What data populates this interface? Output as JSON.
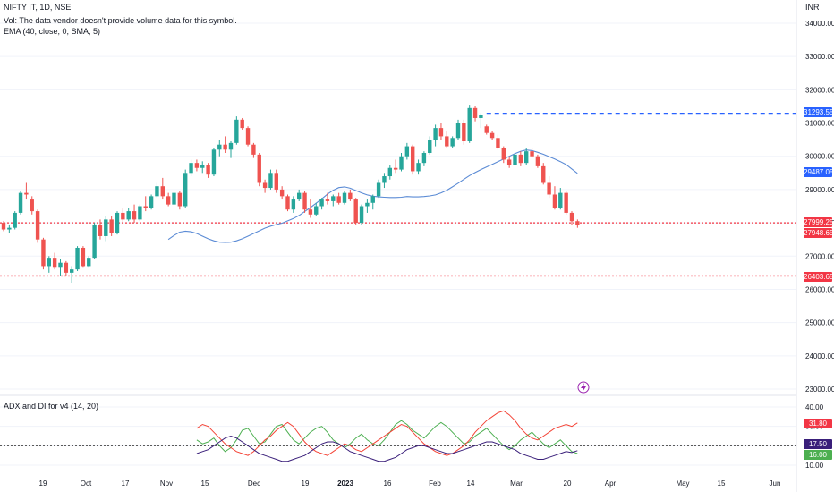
{
  "header": {
    "symbol_line": "NIFTY IT, 1D, NSE",
    "vol_line": "Vol: The data vendor doesn't provide volume data for this symbol.",
    "ema_line": "EMA (40, close, 0, SMA, 5)",
    "currency": "INR"
  },
  "indicator": {
    "title": "ADX and DI for v4 (14, 20)"
  },
  "colors": {
    "up": "#26a69a",
    "down": "#ef5350",
    "ma": "#5b8bd5",
    "blue_level": "#2962ff",
    "red_level": "#f23645",
    "adx": "#3a1f7a",
    "di_plus": "#4caf50",
    "di_minus": "#f44336",
    "threshold": "#444444",
    "flash": "#9c27b0"
  },
  "price_badges": [
    {
      "label": "31293.55",
      "color": "#2962ff"
    },
    {
      "label": "29487.05",
      "color": "#2962ff"
    },
    {
      "label": "27999.25",
      "color": "#f23645"
    },
    {
      "label": "27948.65",
      "color": "#f23645"
    },
    {
      "label": "26403.65",
      "color": "#f23645"
    }
  ],
  "indicator_badges": [
    {
      "label": "31.80",
      "color": "#f23645"
    },
    {
      "label": "17.50",
      "color": "#3a1f7a"
    },
    {
      "label": "16.00",
      "color": "#4caf50"
    }
  ],
  "chart_data": {
    "type": "candlestick",
    "price_axis": {
      "ylim": [
        22900,
        34500
      ],
      "ticks": [
        "34000.00",
        "33000.00",
        "32000.00",
        "31000.00",
        "30000.00",
        "29000.00",
        "28000.00",
        "27000.00",
        "26000.00",
        "25000.00",
        "24000.00",
        "23000.00"
      ]
    },
    "x_axis_labels": [
      "19",
      "Oct",
      "17",
      "Nov",
      "15",
      "Dec",
      "19",
      "2023",
      "16",
      "Feb",
      "14",
      "Mar",
      "20",
      "Apr",
      "May",
      "15",
      "Jun"
    ],
    "levels": [
      {
        "value": 31293.55,
        "style": "dashed",
        "color": "#2962ff"
      },
      {
        "value": 27999.25,
        "style": "dotted",
        "color": "#f23645"
      },
      {
        "value": 26403.65,
        "style": "dotted",
        "color": "#f23645"
      }
    ],
    "candles": [
      [
        28000,
        28050,
        27750,
        27800
      ],
      [
        27800,
        27950,
        27700,
        27850
      ],
      [
        27850,
        28350,
        27800,
        28300
      ],
      [
        28300,
        28950,
        28250,
        28900
      ],
      [
        28900,
        29200,
        28700,
        28850
      ],
      [
        28700,
        28800,
        28250,
        28350
      ],
      [
        28350,
        28400,
        27400,
        27500
      ],
      [
        27500,
        27550,
        26600,
        26700
      ],
      [
        26700,
        27000,
        26500,
        26950
      ],
      [
        26950,
        27100,
        26600,
        26650
      ],
      [
        26650,
        26900,
        26400,
        26800
      ],
      [
        26800,
        26850,
        26400,
        26500
      ],
      [
        26500,
        26700,
        26200,
        26600
      ],
      [
        26600,
        27300,
        26550,
        27250
      ],
      [
        27250,
        27300,
        26650,
        26700
      ],
      [
        26700,
        27000,
        26650,
        26950
      ],
      [
        26950,
        28000,
        26900,
        27950
      ],
      [
        27950,
        28100,
        27500,
        27600
      ],
      [
        27600,
        28200,
        27450,
        28100
      ],
      [
        28100,
        28200,
        27600,
        27700
      ],
      [
        27700,
        28350,
        27650,
        28300
      ],
      [
        28300,
        28450,
        28000,
        28100
      ],
      [
        28100,
        28450,
        28050,
        28350
      ],
      [
        28350,
        28550,
        28000,
        28100
      ],
      [
        28100,
        28550,
        28050,
        28500
      ],
      [
        28500,
        28800,
        28350,
        28450
      ],
      [
        28450,
        28850,
        28400,
        28800
      ],
      [
        28800,
        29200,
        28750,
        29100
      ],
      [
        29100,
        29350,
        28700,
        28800
      ],
      [
        28800,
        28900,
        28500,
        28550
      ],
      [
        28550,
        29000,
        28500,
        28900
      ],
      [
        28900,
        28950,
        28400,
        28500
      ],
      [
        28500,
        29600,
        28450,
        29500
      ],
      [
        29500,
        29900,
        29400,
        29800
      ],
      [
        29800,
        29900,
        29550,
        29650
      ],
      [
        29650,
        29850,
        29500,
        29750
      ],
      [
        29750,
        29800,
        29350,
        29450
      ],
      [
        29450,
        30250,
        29400,
        30200
      ],
      [
        30200,
        30500,
        30000,
        30350
      ],
      [
        30350,
        30600,
        30100,
        30200
      ],
      [
        30200,
        30450,
        29950,
        30400
      ],
      [
        30400,
        31200,
        30350,
        31100
      ],
      [
        31100,
        31150,
        30800,
        30850
      ],
      [
        30850,
        30900,
        30300,
        30350
      ],
      [
        30350,
        30400,
        29950,
        30050
      ],
      [
        30050,
        30100,
        29100,
        29200
      ],
      [
        29200,
        29300,
        28900,
        29050
      ],
      [
        29050,
        29600,
        29000,
        29500
      ],
      [
        29500,
        29600,
        28900,
        29000
      ],
      [
        29000,
        29100,
        28700,
        28800
      ],
      [
        28800,
        28850,
        28350,
        28400
      ],
      [
        28400,
        28800,
        28300,
        28700
      ],
      [
        28700,
        29000,
        28650,
        28900
      ],
      [
        28900,
        28950,
        28300,
        28400
      ],
      [
        28400,
        28700,
        28150,
        28250
      ],
      [
        28250,
        28600,
        28200,
        28500
      ],
      [
        28500,
        28750,
        28400,
        28700
      ],
      [
        28700,
        28900,
        28550,
        28650
      ],
      [
        28650,
        28850,
        28500,
        28800
      ],
      [
        28800,
        28900,
        28550,
        28600
      ],
      [
        28600,
        28950,
        28550,
        28900
      ],
      [
        28900,
        29000,
        28650,
        28700
      ],
      [
        28700,
        28750,
        27950,
        28000
      ],
      [
        28000,
        28550,
        27950,
        28500
      ],
      [
        28500,
        28700,
        28300,
        28600
      ],
      [
        28600,
        28850,
        28400,
        28800
      ],
      [
        28800,
        29300,
        28750,
        29200
      ],
      [
        29200,
        29500,
        29050,
        29400
      ],
      [
        29400,
        29750,
        29300,
        29650
      ],
      [
        29650,
        29900,
        29500,
        29600
      ],
      [
        29600,
        30100,
        29550,
        30000
      ],
      [
        30000,
        30400,
        29900,
        30300
      ],
      [
        30300,
        30350,
        29450,
        29550
      ],
      [
        29550,
        29900,
        29450,
        29800
      ],
      [
        29800,
        30150,
        29700,
        30100
      ],
      [
        30100,
        30600,
        30050,
        30500
      ],
      [
        30500,
        30950,
        30300,
        30850
      ],
      [
        30850,
        31000,
        30500,
        30600
      ],
      [
        30600,
        30750,
        30250,
        30300
      ],
      [
        30300,
        30600,
        30250,
        30550
      ],
      [
        30550,
        31100,
        30500,
        31000
      ],
      [
        31000,
        31100,
        30350,
        30450
      ],
      [
        30450,
        31550,
        30400,
        31450
      ],
      [
        31450,
        31500,
        31050,
        31150
      ],
      [
        31150,
        31300,
        30850,
        31250
      ],
      [
        30900,
        30950,
        30650,
        30700
      ],
      [
        30700,
        30750,
        30500,
        30550
      ],
      [
        30550,
        30650,
        30200,
        30250
      ],
      [
        30250,
        30300,
        29800,
        29900
      ],
      [
        29900,
        30000,
        29650,
        29750
      ],
      [
        29750,
        30100,
        29700,
        30050
      ],
      [
        30050,
        30150,
        29700,
        29800
      ],
      [
        29800,
        30250,
        29750,
        30150
      ],
      [
        30150,
        30250,
        29950,
        30000
      ],
      [
        30000,
        30050,
        29650,
        29700
      ],
      [
        29700,
        29800,
        29150,
        29200
      ],
      [
        29200,
        29400,
        28750,
        28850
      ],
      [
        28850,
        29100,
        28400,
        28450
      ],
      [
        28450,
        29050,
        28400,
        28900
      ],
      [
        28900,
        28950,
        28250,
        28300
      ],
      [
        28300,
        28350,
        27950,
        28050
      ],
      [
        28050,
        28100,
        27850,
        27948.65
      ]
    ],
    "ema_40": [
      27500,
      27620,
      27720,
      27750,
      27730,
      27680,
      27600,
      27520,
      27460,
      27420,
      27410,
      27420,
      27460,
      27520,
      27600,
      27680,
      27760,
      27840,
      27900,
      27950,
      27990,
      28060,
      28130,
      28220,
      28340,
      28460,
      28590,
      28720,
      28860,
      28980,
      29060,
      29080,
      29040,
      28970,
      28900,
      28840,
      28800,
      28780,
      28770,
      28760,
      28760,
      28770,
      28790,
      28780,
      28780,
      28790,
      28810,
      28840,
      28900,
      28980,
      29080,
      29190,
      29310,
      29420,
      29510,
      29600,
      29680,
      29760,
      29840,
      29920,
      30000,
      30080,
      30150,
      30190,
      30170,
      30120,
      30060,
      29990,
      29920,
      29840,
      29750,
      29620,
      29487.05
    ],
    "indicator": {
      "ylim": [
        8,
        42
      ],
      "ticks": [
        "40.00",
        "30.00",
        "20.00",
        "10.00"
      ],
      "threshold": 20,
      "adx": [
        16,
        17,
        18,
        20,
        22,
        24,
        25,
        24,
        22,
        20,
        18,
        16,
        15,
        14,
        13,
        12,
        12,
        13,
        14,
        15,
        17,
        19,
        21,
        22,
        22,
        21,
        19,
        17,
        16,
        15,
        14,
        13,
        12,
        12,
        13,
        14,
        16,
        18,
        19,
        20,
        20,
        19,
        18,
        17,
        16,
        16,
        17,
        18,
        19,
        20,
        21,
        22,
        22,
        21,
        20,
        19,
        18,
        16,
        15,
        14,
        13,
        13,
        14,
        15,
        16,
        17,
        16.5,
        17.5
      ],
      "di_plus": [
        23,
        21,
        22,
        24,
        20,
        17,
        19,
        23,
        28,
        29,
        25,
        21,
        22,
        26,
        30,
        31,
        27,
        23,
        21,
        24,
        27,
        29,
        30,
        27,
        23,
        21,
        19,
        21,
        24,
        26,
        23,
        21,
        20,
        23,
        27,
        31,
        33,
        31,
        28,
        26,
        24,
        27,
        30,
        32,
        30,
        27,
        24,
        21,
        22,
        25,
        27,
        29,
        26,
        23,
        20,
        18,
        20,
        23,
        25,
        27,
        24,
        21,
        19,
        21,
        23,
        20,
        17,
        16
      ],
      "di_minus": [
        29,
        31,
        30,
        27,
        24,
        21,
        19,
        17,
        16,
        15,
        17,
        20,
        23,
        25,
        28,
        30,
        32,
        30,
        26,
        22,
        19,
        17,
        16,
        15,
        17,
        19,
        21,
        20,
        18,
        17,
        19,
        21,
        23,
        25,
        27,
        29,
        31,
        30,
        27,
        24,
        21,
        19,
        17,
        16,
        15,
        16,
        18,
        20,
        23,
        27,
        30,
        33,
        35,
        37,
        38,
        36,
        33,
        29,
        26,
        24,
        23,
        25,
        27,
        29,
        30,
        31,
        30,
        31.8
      ]
    }
  }
}
